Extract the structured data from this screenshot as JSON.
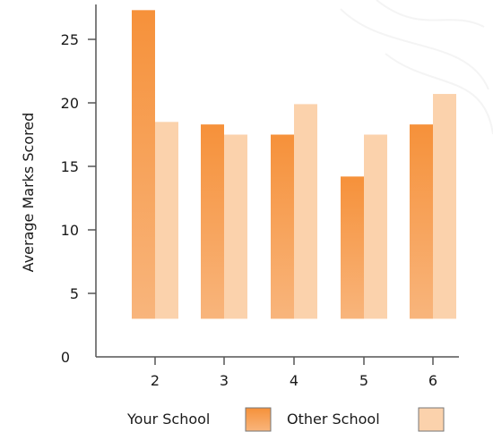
{
  "chart_data": {
    "type": "bar",
    "ylabel": "Average Marks Scored",
    "xlabel": "",
    "categories": [
      "2",
      "3",
      "4",
      "5",
      "6"
    ],
    "series": [
      {
        "name": "Your School",
        "values": [
          27.3,
          18.3,
          17.5,
          14.2,
          18.3
        ]
      },
      {
        "name": "Other School",
        "values": [
          18.5,
          17.5,
          19.9,
          17.5,
          20.7
        ]
      }
    ],
    "yticks": [
      "0",
      "5",
      "10",
      "15",
      "20",
      "25"
    ],
    "ylim": [
      0,
      27.3
    ],
    "bar_baseline": 3,
    "grid": false,
    "legend_position": "bottom-center"
  },
  "colors": {
    "your_school_top": "#f6913a",
    "your_school_bottom": "#f8b57c",
    "other_school": "#fbd2ac",
    "axis": "#555555"
  }
}
